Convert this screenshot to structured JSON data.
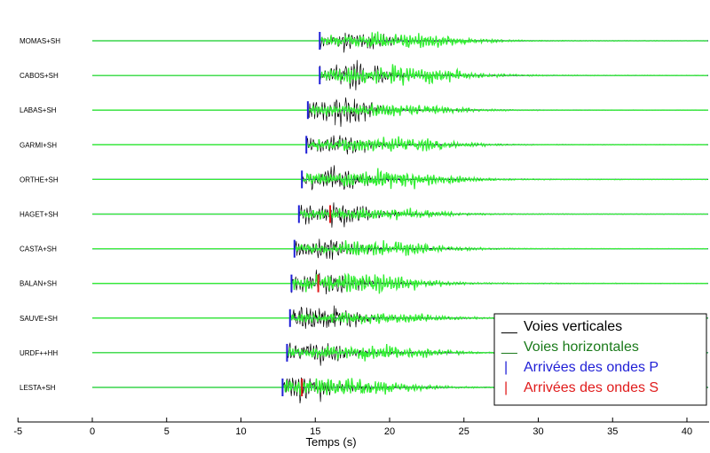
{
  "chart_data": {
    "type": "line",
    "xlabel": "Temps (s)",
    "xlim": [
      -5,
      41.5
    ],
    "xticks": [
      -5,
      0,
      5,
      10,
      15,
      20,
      25,
      30,
      35,
      40
    ],
    "stations": [
      {
        "label": "MOMAS+SH",
        "p_arrival": 15.3,
        "s_arrival": null
      },
      {
        "label": "CABOS+SH",
        "p_arrival": 15.3,
        "s_arrival": null
      },
      {
        "label": "LABAS+SH",
        "p_arrival": 14.5,
        "s_arrival": null
      },
      {
        "label": "GARMI+SH",
        "p_arrival": 14.4,
        "s_arrival": null
      },
      {
        "label": "ORTHE+SH",
        "p_arrival": 14.1,
        "s_arrival": null
      },
      {
        "label": "HAGET+SH",
        "p_arrival": 13.9,
        "s_arrival": 16.0
      },
      {
        "label": "CASTA+SH",
        "p_arrival": 13.6,
        "s_arrival": null
      },
      {
        "label": "BALAN+SH",
        "p_arrival": 13.4,
        "s_arrival": 15.2
      },
      {
        "label": "SAUVE+SH",
        "p_arrival": 13.3,
        "s_arrival": null
      },
      {
        "label": "URDF++HH",
        "p_arrival": 13.1,
        "s_arrival": null
      },
      {
        "label": "LESTA+SH",
        "p_arrival": 12.8,
        "s_arrival": 14.1
      }
    ],
    "legend": {
      "placement": "bottom-right",
      "entries": [
        {
          "marker": "__",
          "label": "Voies verticales",
          "color": "#000000"
        },
        {
          "marker": "__",
          "label": "Voies horizontales",
          "color": "#1a7a1a"
        },
        {
          "marker": "|",
          "label": "Arrivées des ondes P",
          "color": "#1f1fd6"
        },
        {
          "marker": "|",
          "label": "Arrivées des ondes S",
          "color": "#e01b1b"
        }
      ]
    },
    "colors": {
      "vertical_trace": "#000000",
      "horizontal_trace": "#33ee33",
      "baseline": "#1f1fb0",
      "p_marker": "#1f1fd6",
      "s_marker": "#e01b1b"
    }
  }
}
